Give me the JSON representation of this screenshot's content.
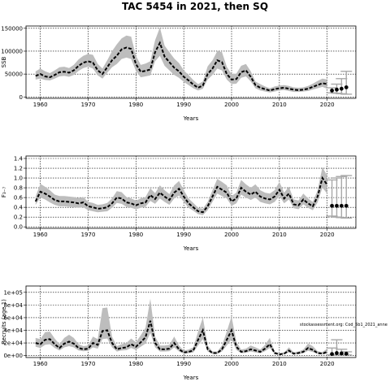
{
  "figure": {
    "title": "TAC 5454 in 2021, then SQ",
    "annotation": "stockassessment.org: Cod_5b1_2021_anne"
  },
  "chart_data": [
    {
      "type": "line",
      "panel": "ssb",
      "title": "",
      "xlabel": "Years",
      "ylabel": "SSB",
      "xlim": [
        1957,
        2026
      ],
      "ylim": [
        -3000,
        155000
      ],
      "xticks": [
        1960,
        1970,
        1980,
        1990,
        2000,
        2010,
        2020
      ],
      "xtick_labels": [
        "1960",
        "1970",
        "1980",
        "1990",
        "2000",
        "2010",
        "2020"
      ],
      "yticks": [
        0,
        50000,
        100000,
        150000
      ],
      "ytick_labels": [
        "0",
        "50000",
        "100000",
        "150000"
      ],
      "grid": true,
      "x": [
        1959,
        1960,
        1961,
        1962,
        1963,
        1964,
        1965,
        1966,
        1967,
        1968,
        1969,
        1970,
        1971,
        1972,
        1973,
        1974,
        1975,
        1976,
        1977,
        1978,
        1979,
        1980,
        1981,
        1982,
        1983,
        1984,
        1985,
        1986,
        1987,
        1988,
        1989,
        1990,
        1991,
        1992,
        1993,
        1994,
        1995,
        1996,
        1997,
        1998,
        1999,
        2000,
        2001,
        2002,
        2003,
        2004,
        2005,
        2006,
        2007,
        2008,
        2009,
        2010,
        2011,
        2012,
        2013,
        2014,
        2015,
        2016,
        2017,
        2018,
        2019,
        2020
      ],
      "estimate": [
        46000,
        50000,
        45000,
        43000,
        48000,
        54000,
        55000,
        53000,
        58000,
        68000,
        75000,
        78000,
        75000,
        58000,
        50000,
        65000,
        80000,
        90000,
        104000,
        108000,
        105000,
        72000,
        55000,
        57000,
        60000,
        98000,
        118000,
        88000,
        76000,
        64000,
        56000,
        44000,
        36000,
        27000,
        20000,
        25000,
        50000,
        62000,
        80000,
        76000,
        50000,
        38000,
        39000,
        54000,
        58000,
        44000,
        26000,
        20000,
        17000,
        14000,
        17000,
        19000,
        20000,
        18000,
        16000,
        15000,
        16000,
        18000,
        22000,
        26000,
        30000,
        28000
      ],
      "lower": [
        38000,
        40000,
        37000,
        36000,
        40000,
        45000,
        46000,
        44000,
        48000,
        57000,
        63000,
        66000,
        62000,
        47000,
        40000,
        53000,
        65000,
        72000,
        83000,
        86000,
        83000,
        57000,
        43000,
        45000,
        47000,
        78000,
        90000,
        68000,
        58000,
        48000,
        42000,
        33000,
        26000,
        19000,
        14000,
        18000,
        38000,
        48000,
        62000,
        58000,
        38000,
        28000,
        29000,
        42000,
        45000,
        34000,
        19000,
        14000,
        12000,
        10000,
        12000,
        14000,
        15000,
        13000,
        11000,
        11000,
        12000,
        13000,
        16000,
        19000,
        22000,
        18000
      ],
      "upper": [
        56000,
        62000,
        56000,
        52000,
        58000,
        65000,
        66000,
        63000,
        70000,
        82000,
        90000,
        94000,
        92000,
        72000,
        62000,
        80000,
        100000,
        115000,
        128000,
        134000,
        132000,
        90000,
        70000,
        73000,
        78000,
        124000,
        152000,
        112000,
        98000,
        84000,
        74000,
        58000,
        48000,
        37000,
        28000,
        34000,
        67000,
        80000,
        100000,
        98000,
        66000,
        50000,
        51000,
        68000,
        72000,
        56000,
        34000,
        28000,
        23000,
        19000,
        23000,
        25000,
        26000,
        24000,
        21000,
        20000,
        21000,
        24000,
        29000,
        35000,
        40000,
        38000
      ],
      "forecast": {
        "years": [
          2021,
          2022,
          2023,
          2024
        ],
        "median": [
          14000,
          16000,
          18000,
          21000
        ],
        "lower": [
          9000,
          8000,
          7000,
          6000
        ],
        "upper": [
          20000,
          28000,
          40000,
          56000
        ]
      }
    },
    {
      "type": "line",
      "panel": "fbar",
      "title": "",
      "xlabel": "Years",
      "ylabel": "F₃₋₇",
      "xlim": [
        1957,
        2026
      ],
      "ylim": [
        -0.03,
        1.45
      ],
      "xticks": [
        1960,
        1970,
        1980,
        1990,
        2000,
        2010,
        2020
      ],
      "xtick_labels": [
        "1960",
        "1970",
        "1980",
        "1990",
        "2000",
        "2010",
        "2020"
      ],
      "yticks": [
        0,
        0.2,
        0.4,
        0.6,
        0.8,
        1.0,
        1.2,
        1.4
      ],
      "ytick_labels": [
        "0.0",
        "0.2",
        "0.4",
        "0.6",
        "0.8",
        "1.0",
        "1.2",
        "1.4"
      ],
      "grid": true,
      "x": [
        1959,
        1960,
        1961,
        1962,
        1963,
        1964,
        1965,
        1966,
        1967,
        1968,
        1969,
        1970,
        1971,
        1972,
        1973,
        1974,
        1975,
        1976,
        1977,
        1978,
        1979,
        1980,
        1981,
        1982,
        1983,
        1984,
        1985,
        1986,
        1987,
        1988,
        1989,
        1990,
        1991,
        1992,
        1993,
        1994,
        1995,
        1996,
        1997,
        1998,
        1999,
        2000,
        2001,
        2002,
        2003,
        2004,
        2005,
        2006,
        2007,
        2008,
        2009,
        2010,
        2011,
        2012,
        2013,
        2014,
        2015,
        2016,
        2017,
        2018,
        2019,
        2020
      ],
      "estimate": [
        0.52,
        0.72,
        0.68,
        0.62,
        0.55,
        0.52,
        0.52,
        0.51,
        0.5,
        0.48,
        0.5,
        0.42,
        0.4,
        0.37,
        0.38,
        0.4,
        0.48,
        0.6,
        0.58,
        0.5,
        0.48,
        0.44,
        0.48,
        0.5,
        0.65,
        0.57,
        0.7,
        0.62,
        0.55,
        0.7,
        0.78,
        0.62,
        0.48,
        0.4,
        0.32,
        0.3,
        0.42,
        0.62,
        0.82,
        0.76,
        0.7,
        0.52,
        0.58,
        0.8,
        0.72,
        0.66,
        0.72,
        0.62,
        0.58,
        0.56,
        0.62,
        0.76,
        0.58,
        0.68,
        0.46,
        0.44,
        0.56,
        0.48,
        0.42,
        0.62,
        1.0,
        0.86
      ],
      "lower": [
        0.45,
        0.6,
        0.56,
        0.5,
        0.45,
        0.42,
        0.42,
        0.41,
        0.4,
        0.39,
        0.4,
        0.34,
        0.32,
        0.3,
        0.31,
        0.32,
        0.39,
        0.49,
        0.47,
        0.41,
        0.39,
        0.36,
        0.39,
        0.41,
        0.53,
        0.47,
        0.58,
        0.51,
        0.45,
        0.58,
        0.64,
        0.51,
        0.39,
        0.33,
        0.26,
        0.24,
        0.34,
        0.51,
        0.68,
        0.63,
        0.58,
        0.43,
        0.48,
        0.66,
        0.6,
        0.55,
        0.6,
        0.51,
        0.48,
        0.46,
        0.51,
        0.63,
        0.48,
        0.56,
        0.38,
        0.36,
        0.46,
        0.39,
        0.34,
        0.5,
        0.8,
        0.68
      ],
      "upper": [
        0.62,
        0.88,
        0.82,
        0.75,
        0.66,
        0.63,
        0.63,
        0.62,
        0.61,
        0.59,
        0.61,
        0.51,
        0.49,
        0.45,
        0.46,
        0.49,
        0.58,
        0.73,
        0.71,
        0.61,
        0.58,
        0.54,
        0.58,
        0.61,
        0.79,
        0.69,
        0.85,
        0.75,
        0.67,
        0.85,
        0.94,
        0.75,
        0.58,
        0.49,
        0.39,
        0.37,
        0.51,
        0.75,
        0.98,
        0.92,
        0.85,
        0.63,
        0.7,
        0.96,
        0.87,
        0.8,
        0.87,
        0.75,
        0.7,
        0.68,
        0.75,
        0.92,
        0.7,
        0.82,
        0.56,
        0.54,
        0.68,
        0.58,
        0.51,
        0.75,
        1.22,
        1.05
      ],
      "forecast": {
        "years": [
          2021,
          2022,
          2023,
          2024
        ],
        "median": [
          0.43,
          0.43,
          0.43,
          0.43
        ],
        "lower": [
          0.22,
          0.2,
          0.19,
          0.18
        ],
        "upper": [
          0.96,
          1.0,
          1.03,
          1.05
        ]
      }
    },
    {
      "type": "line",
      "panel": "recruits",
      "title": "",
      "xlabel": "Years",
      "ylabel": "Recruits (age 1)",
      "xlim": [
        1957,
        2026
      ],
      "ylim": [
        -3000,
        110000
      ],
      "xticks": [
        1960,
        1970,
        1980,
        1990,
        2000,
        2010,
        2020
      ],
      "xtick_labels": [
        "1960",
        "1970",
        "1980",
        "1990",
        "2000",
        "2010",
        "2020"
      ],
      "yticks": [
        0,
        20000,
        40000,
        60000,
        80000,
        100000
      ],
      "ytick_labels": [
        "0e+00",
        "2e+04",
        "4e+04",
        "6e+04",
        "8e+04",
        "1e+05"
      ],
      "grid": true,
      "x": [
        1959,
        1960,
        1961,
        1962,
        1963,
        1964,
        1965,
        1966,
        1967,
        1968,
        1969,
        1970,
        1971,
        1972,
        1973,
        1974,
        1975,
        1976,
        1977,
        1978,
        1979,
        1980,
        1981,
        1982,
        1983,
        1984,
        1985,
        1986,
        1987,
        1988,
        1989,
        1990,
        1991,
        1992,
        1993,
        1994,
        1995,
        1996,
        1997,
        1998,
        1999,
        2000,
        2001,
        2002,
        2003,
        2004,
        2005,
        2006,
        2007,
        2008,
        2009,
        2010,
        2011,
        2012,
        2013,
        2014,
        2015,
        2016,
        2017,
        2018,
        2019,
        2020
      ],
      "estimate": [
        20000,
        18000,
        25000,
        26000,
        18000,
        12000,
        19000,
        22000,
        19000,
        12000,
        10000,
        11000,
        20000,
        17000,
        39000,
        40000,
        20000,
        10000,
        12000,
        13000,
        18000,
        14000,
        21000,
        29000,
        55000,
        20000,
        10000,
        10000,
        11000,
        20000,
        10000,
        5000,
        6000,
        8000,
        25000,
        40000,
        10000,
        4000,
        4000,
        10000,
        25000,
        40000,
        14000,
        6000,
        7000,
        10000,
        8000,
        6000,
        11000,
        18000,
        4000,
        2000,
        3000,
        8000,
        3000,
        4000,
        6000,
        12000,
        9000,
        4000,
        3000,
        6000
      ],
      "lower": [
        14000,
        12000,
        17000,
        18000,
        12000,
        8000,
        13000,
        15000,
        13000,
        8000,
        7000,
        7500,
        13000,
        11000,
        26000,
        27000,
        13000,
        6500,
        8000,
        8500,
        12000,
        9000,
        14000,
        19000,
        36000,
        13000,
        6500,
        6500,
        7000,
        13000,
        6500,
        3000,
        3800,
        5000,
        16000,
        26000,
        6500,
        2500,
        2500,
        6500,
        16000,
        26000,
        9000,
        3800,
        4500,
        6500,
        5000,
        3800,
        7000,
        12000,
        2500,
        1200,
        1800,
        5000,
        1800,
        2500,
        3800,
        7500,
        5600,
        2500,
        1800,
        3000
      ],
      "upper": [
        28000,
        26000,
        37000,
        38000,
        27000,
        18000,
        28000,
        33000,
        28000,
        18000,
        15000,
        16000,
        30000,
        26000,
        75000,
        76000,
        30000,
        15000,
        18000,
        20000,
        27000,
        21000,
        32000,
        44000,
        90000,
        30000,
        16000,
        16000,
        17000,
        30000,
        16000,
        8000,
        9500,
        13000,
        38000,
        60000,
        16000,
        6500,
        6500,
        16000,
        38000,
        62000,
        22000,
        9500,
        11000,
        16000,
        13000,
        9500,
        17000,
        28000,
        6500,
        3500,
        5000,
        13000,
        5000,
        6500,
        9500,
        19000,
        15000,
        7000,
        5500,
        11000
      ],
      "forecast": {
        "years": [
          2021,
          2022,
          2023,
          2024
        ],
        "median": [
          2500,
          4000,
          3500,
          3000
        ],
        "lower": [
          1000,
          1000,
          1000,
          1000
        ],
        "upper": [
          12000,
          25000,
          10000,
          6000
        ]
      }
    }
  ]
}
